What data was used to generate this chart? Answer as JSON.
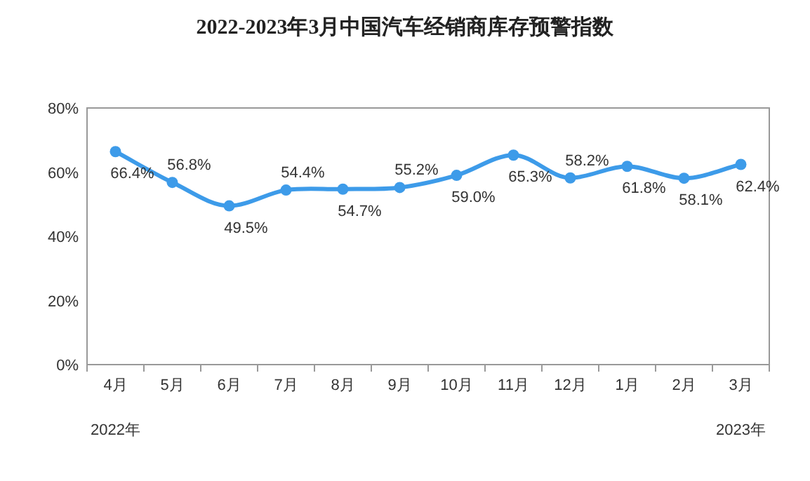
{
  "chart_data": {
    "type": "line",
    "title": "2022-2023年3月中国汽车经销商库存预警指数",
    "categories": [
      "4月",
      "5月",
      "6月",
      "7月",
      "8月",
      "9月",
      "10月",
      "11月",
      "12月",
      "1月",
      "2月",
      "3月"
    ],
    "values": [
      66.4,
      56.8,
      49.5,
      54.4,
      54.7,
      55.2,
      59.0,
      65.3,
      58.2,
      61.8,
      58.1,
      62.4
    ],
    "value_labels": [
      "66.4%",
      "56.8%",
      "49.5%",
      "54.4%",
      "54.7%",
      "55.2%",
      "59.0%",
      "65.3%",
      "58.2%",
      "61.8%",
      "58.1%",
      "62.4%"
    ],
    "color": "#3d9be9",
    "marker": "circle",
    "grid": false,
    "ylim": [
      0,
      80
    ],
    "yticks": [
      {
        "value": 0,
        "label": "0%"
      },
      {
        "value": 20,
        "label": "20%"
      },
      {
        "value": 40,
        "label": "40%"
      },
      {
        "value": 60,
        "label": "60%"
      },
      {
        "value": 80,
        "label": "80%"
      }
    ],
    "annotations": [
      "2022年",
      "2023年"
    ]
  }
}
